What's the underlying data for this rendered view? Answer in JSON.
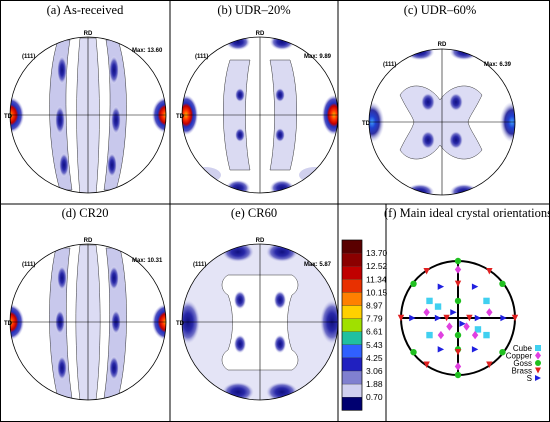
{
  "figure": {
    "panels": [
      {
        "id": "a",
        "title": "(a) As-received",
        "label_111": "(111)",
        "label_rd": "RD",
        "label_td": "TD",
        "max_label": "Max: 13.60"
      },
      {
        "id": "b",
        "title": "(b) UDR–20%",
        "label_111": "(111)",
        "label_rd": "RD",
        "label_td": "TD",
        "max_label": "Max: 9.89"
      },
      {
        "id": "c",
        "title": "(c) UDR–60%",
        "label_111": "(111)",
        "label_rd": "RD",
        "label_td": "TD",
        "max_label": "Max: 6.39"
      },
      {
        "id": "d",
        "title": "(d) CR20",
        "label_111": "(111)",
        "label_rd": "RD",
        "label_td": "TD",
        "max_label": "Max: 10.31"
      },
      {
        "id": "e",
        "title": "(e) CR60",
        "label_111": "(111)",
        "label_rd": "RD",
        "label_td": "TD",
        "max_label": "Max: 5.87"
      },
      {
        "id": "f",
        "title": "(f) Main ideal crystal orientations"
      }
    ],
    "colorbar": {
      "levels": [
        "13.70",
        "12.52",
        "11.34",
        "10.15",
        "8.97",
        "7.79",
        "6.61",
        "5.43",
        "4.25",
        "3.06",
        "1.88",
        "0.70"
      ],
      "colors": [
        "#5a0000",
        "#8b0000",
        "#c00000",
        "#e83000",
        "#ff8000",
        "#ffd000",
        "#a0e000",
        "#20c0a0",
        "#3060ff",
        "#2020c0",
        "#8080d0",
        "#d0d0f0",
        "#000070"
      ]
    },
    "legend": [
      {
        "name": "Cube",
        "color": "#40d0f0",
        "marker": "square"
      },
      {
        "name": "Copper",
        "color": "#e040e0",
        "marker": "diamond"
      },
      {
        "name": "Goss",
        "color": "#20c020",
        "marker": "circle"
      },
      {
        "name": "Brass",
        "color": "#e02020",
        "marker": "triangle-down"
      },
      {
        "name": "S",
        "color": "#2020e0",
        "marker": "triangle-right"
      }
    ]
  }
}
